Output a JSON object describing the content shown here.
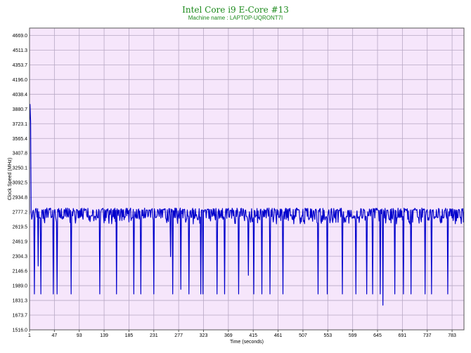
{
  "chart_data": {
    "type": "line",
    "title": "Intel Core i9 E-Core #13",
    "subtitle": "Machine name : LAPTOP-UQRONT7I",
    "xlabel": "Time (seconds)",
    "ylabel": "Clock Speed (MHz)",
    "xlim": [
      1,
      805
    ],
    "ylim": [
      1516.0,
      4747.0
    ],
    "x_ticks": [
      "1",
      "47",
      "93",
      "139",
      "185",
      "231",
      "277",
      "323",
      "369",
      "415",
      "461",
      "507",
      "553",
      "599",
      "645",
      "691",
      "737",
      "783"
    ],
    "y_ticks": [
      "1516.0",
      "1673.7",
      "1831.3",
      "1989.0",
      "2146.6",
      "2304.3",
      "2461.9",
      "2619.5",
      "2777.2",
      "2934.8",
      "3092.5",
      "3250.1",
      "3407.8",
      "3565.4",
      "3723.1",
      "3880.7",
      "4038.4",
      "4196.0",
      "4353.7",
      "4511.3",
      "4669.0"
    ],
    "grid": true,
    "colors": {
      "plot_bg": "#f6e6fb",
      "grid": "#b7a8c4",
      "series": "#0000cc",
      "title": "#1c8a1c"
    },
    "series": [
      {
        "baseline": 2800,
        "values": [
          [
            1,
            2750
          ],
          [
            1,
            3720
          ],
          [
            2,
            3930
          ],
          [
            3,
            3750
          ],
          [
            4,
            2780
          ],
          [
            5,
            2700
          ],
          [
            7,
            2780
          ],
          [
            9,
            2720
          ],
          [
            10,
            1900
          ],
          [
            11,
            2760
          ],
          [
            14,
            2790
          ],
          [
            17,
            2200
          ],
          [
            18,
            2780
          ],
          [
            22,
            1900
          ],
          [
            24,
            2800
          ],
          [
            28,
            2700
          ],
          [
            30,
            2800
          ],
          [
            36,
            2760
          ],
          [
            45,
            1900
          ],
          [
            47,
            2800
          ],
          [
            50,
            2700
          ],
          [
            52,
            1900
          ],
          [
            54,
            2780
          ],
          [
            58,
            2720
          ],
          [
            75,
            2800
          ],
          [
            78,
            1900
          ],
          [
            80,
            2780
          ],
          [
            100,
            2700
          ],
          [
            118,
            2800
          ],
          [
            131,
            1900
          ],
          [
            133,
            2780
          ],
          [
            150,
            2750
          ],
          [
            162,
            1900
          ],
          [
            164,
            2790
          ],
          [
            183,
            2760
          ],
          [
            194,
            1900
          ],
          [
            196,
            2780
          ],
          [
            207,
            1900
          ],
          [
            209,
            2800
          ],
          [
            225,
            2720
          ],
          [
            231,
            1900
          ],
          [
            233,
            2780
          ],
          [
            240,
            2760
          ],
          [
            250,
            2800
          ],
          [
            262,
            2300
          ],
          [
            264,
            2780
          ],
          [
            266,
            1900
          ],
          [
            268,
            2790
          ],
          [
            281,
            1950
          ],
          [
            283,
            2760
          ],
          [
            296,
            1900
          ],
          [
            298,
            2780
          ],
          [
            310,
            2750
          ],
          [
            318,
            1900
          ],
          [
            320,
            2800
          ],
          [
            322,
            1900
          ],
          [
            324,
            2780
          ],
          [
            340,
            2750
          ],
          [
            348,
            1900
          ],
          [
            350,
            2780
          ],
          [
            362,
            1900
          ],
          [
            364,
            2800
          ],
          [
            380,
            2720
          ],
          [
            388,
            1900
          ],
          [
            390,
            2780
          ],
          [
            406,
            2100
          ],
          [
            408,
            2780
          ],
          [
            416,
            1900
          ],
          [
            418,
            2790
          ],
          [
            431,
            1900
          ],
          [
            433,
            2780
          ],
          [
            446,
            1900
          ],
          [
            448,
            2800
          ],
          [
            460,
            2750
          ],
          [
            470,
            1900
          ],
          [
            472,
            2780
          ],
          [
            485,
            2750
          ],
          [
            500,
            2800
          ],
          [
            520,
            2720
          ],
          [
            535,
            1900
          ],
          [
            537,
            2780
          ],
          [
            552,
            1900
          ],
          [
            554,
            2780
          ],
          [
            570,
            2800
          ],
          [
            580,
            1900
          ],
          [
            582,
            2780
          ],
          [
            605,
            1900
          ],
          [
            607,
            2790
          ],
          [
            625,
            1900
          ],
          [
            627,
            2780
          ],
          [
            636,
            1900
          ],
          [
            638,
            2780
          ],
          [
            650,
            1900
          ],
          [
            652,
            2760
          ],
          [
            655,
            1780
          ],
          [
            657,
            2780
          ],
          [
            665,
            2750
          ],
          [
            677,
            1900
          ],
          [
            679,
            2790
          ],
          [
            693,
            1900
          ],
          [
            695,
            2780
          ],
          [
            707,
            1900
          ],
          [
            709,
            2800
          ],
          [
            720,
            2720
          ],
          [
            733,
            1900
          ],
          [
            735,
            2780
          ],
          [
            745,
            1900
          ],
          [
            747,
            2790
          ],
          [
            760,
            2750
          ],
          [
            775,
            1900
          ],
          [
            777,
            2780
          ],
          [
            790,
            2800
          ],
          [
            805,
            2780
          ]
        ]
      }
    ]
  }
}
